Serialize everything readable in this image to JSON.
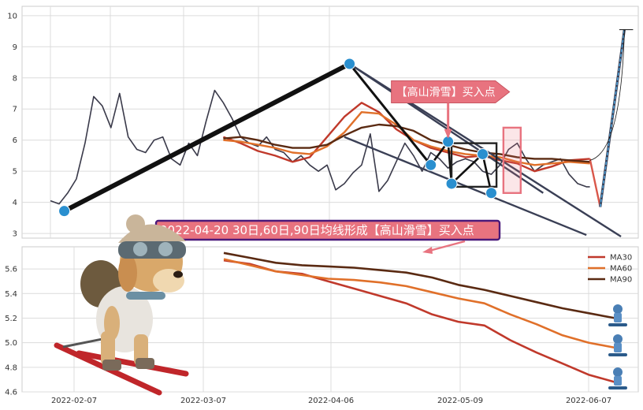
{
  "chart_data": [
    {
      "type": "line",
      "panel": "price",
      "ylim": [
        2.85,
        10.3
      ],
      "y_ticks": [
        "3",
        "4",
        "5",
        "6",
        "7",
        "8",
        "9",
        "10"
      ],
      "grid": true,
      "series": [
        {
          "color": "#3a3a4a",
          "x": [
            0,
            5,
            10,
            15,
            20,
            25,
            30,
            35,
            40,
            45,
            50,
            55,
            60,
            65,
            70,
            75,
            80,
            85,
            90,
            95,
            100,
            105,
            110,
            115,
            120,
            125,
            130,
            135,
            140,
            145,
            150,
            155,
            160,
            165,
            170,
            175,
            180,
            185,
            190,
            195,
            200,
            205,
            210,
            215,
            220,
            225,
            230,
            235,
            240,
            245,
            250,
            255,
            260,
            265,
            270,
            275,
            280,
            285,
            290,
            295,
            300,
            305,
            310,
            312
          ],
          "values": [
            4.05,
            3.95,
            4.3,
            4.75,
            5.9,
            7.4,
            7.1,
            6.4,
            7.5,
            6.1,
            5.7,
            5.6,
            6.0,
            6.1,
            5.4,
            5.2,
            5.9,
            5.5,
            6.6,
            7.6,
            7.2,
            6.7,
            6.1,
            5.9,
            5.8,
            6.1,
            5.7,
            5.6,
            5.3,
            5.5,
            5.2,
            5.0,
            5.2,
            4.4,
            4.6,
            4.95,
            5.2,
            6.2,
            4.35,
            4.7,
            5.3,
            5.9,
            5.5,
            5.0,
            5.6,
            5.4,
            5.1,
            5.3,
            5.4,
            5.3,
            5.0,
            4.9,
            5.2,
            5.7,
            5.9,
            5.4,
            5.0,
            5.2,
            5.3,
            5.4,
            4.9,
            4.6,
            4.5,
            4.5
          ]
        },
        {
          "name": "MA30",
          "color": "#c0392b",
          "x": [
            100,
            110,
            120,
            130,
            140,
            150,
            160,
            170,
            180,
            190,
            200,
            210,
            220,
            230,
            240,
            250,
            260,
            270,
            280,
            290,
            300,
            312
          ],
          "values": [
            6.1,
            5.9,
            5.65,
            5.5,
            5.3,
            5.45,
            6.1,
            6.75,
            7.2,
            6.9,
            6.35,
            6.0,
            5.75,
            5.6,
            5.45,
            5.5,
            5.35,
            5.25,
            5.0,
            5.15,
            5.35,
            5.4
          ]
        },
        {
          "name": "MA60",
          "color": "#e0702a",
          "x": [
            100,
            110,
            120,
            130,
            140,
            150,
            160,
            170,
            180,
            190,
            200,
            210,
            220,
            230,
            240,
            250,
            260,
            270,
            280,
            290,
            300,
            312
          ],
          "values": [
            6.0,
            5.95,
            5.85,
            5.75,
            5.6,
            5.55,
            5.8,
            6.25,
            6.9,
            6.85,
            6.5,
            6.0,
            5.8,
            5.65,
            5.55,
            5.5,
            5.45,
            5.3,
            5.2,
            5.25,
            5.3,
            5.25
          ]
        },
        {
          "name": "MA90",
          "color": "#5a2a12",
          "x": [
            100,
            110,
            120,
            130,
            140,
            150,
            160,
            170,
            180,
            190,
            200,
            210,
            220,
            230,
            240,
            250,
            260,
            270,
            280,
            290,
            300,
            312
          ],
          "values": [
            6.05,
            6.1,
            6.0,
            5.85,
            5.75,
            5.75,
            5.85,
            6.15,
            6.4,
            6.5,
            6.45,
            6.3,
            6.0,
            5.85,
            5.7,
            5.6,
            5.55,
            5.45,
            5.4,
            5.4,
            5.35,
            5.3
          ]
        }
      ],
      "annotation_points": [
        {
          "x": 8,
          "y": 3.72
        },
        {
          "x": 173,
          "y": 8.45
        },
        {
          "x": 220,
          "y": 5.2
        },
        {
          "x": 230,
          "y": 5.95
        },
        {
          "x": 232,
          "y": 4.6
        },
        {
          "x": 250,
          "y": 5.55
        },
        {
          "x": 255,
          "y": 4.3
        }
      ],
      "forecast": {
        "x": [
          312,
          318,
          332
        ],
        "values": [
          5.4,
          3.85,
          9.55
        ],
        "color": "#4ea1d8"
      },
      "pattern_box": {
        "x": [
          232,
          258
        ],
        "values": [
          4.5,
          5.9
        ]
      },
      "highlight_box": {
        "x": [
          262,
          272
        ],
        "values": [
          4.3,
          6.4
        ]
      },
      "callout": {
        "text": "【高山滑雪】买入点",
        "x": 230,
        "y": 7.55,
        "color": "#e8737f"
      },
      "title_callout": {
        "text": "2022-04-20 30日,60日,90日均线形成【高山滑雪】买入点",
        "border": "#4b1a7a",
        "fill": "#e8737f"
      }
    },
    {
      "type": "line",
      "panel": "moving-averages",
      "ylim": [
        4.6,
        5.78
      ],
      "y_ticks": [
        "4.6",
        "4.8",
        "5.0",
        "5.2",
        "5.4",
        "5.6"
      ],
      "x_ticks": [
        "2022-02-07",
        "2022-03-07",
        "2022-04-06",
        "2022-05-09",
        "2022-06-07"
      ],
      "legend_position": "top-right",
      "grid": true,
      "series": [
        {
          "name": "MA30",
          "color": "#c0392b",
          "values": [
            5.67,
            5.64,
            5.58,
            5.56,
            5.5,
            5.44,
            5.38,
            5.32,
            5.23,
            5.17,
            5.14,
            5.02,
            4.92,
            4.83,
            4.74,
            4.68
          ]
        },
        {
          "name": "MA60",
          "color": "#e0702a",
          "values": [
            5.68,
            5.63,
            5.58,
            5.55,
            5.52,
            5.51,
            5.49,
            5.46,
            5.41,
            5.36,
            5.32,
            5.23,
            5.15,
            5.06,
            5.0,
            4.96
          ]
        },
        {
          "name": "MA90",
          "color": "#5a2a12",
          "values": [
            5.73,
            5.69,
            5.65,
            5.63,
            5.62,
            5.61,
            5.59,
            5.57,
            5.53,
            5.47,
            5.43,
            5.38,
            5.33,
            5.28,
            5.24,
            5.2
          ]
        }
      ]
    }
  ]
}
